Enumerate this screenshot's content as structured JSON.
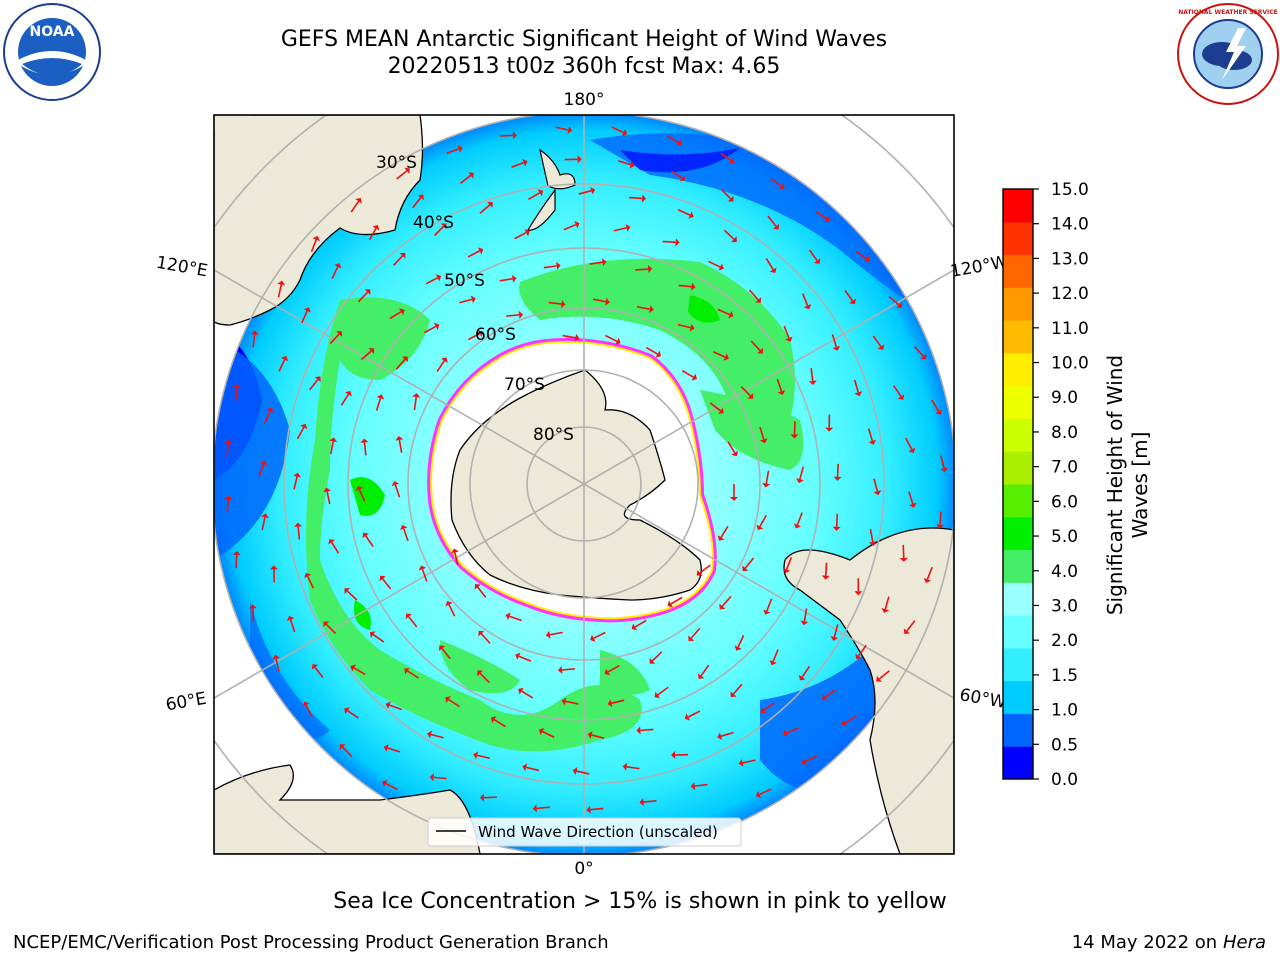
{
  "title": {
    "line1": "GEFS MEAN Antarctic Significant Height of Wind Waves",
    "line2": "20220513 t00z 360h fcst   Max: 4.65"
  },
  "logos": {
    "noaa_text": "NOAA",
    "nws_text": "NATIONAL WEATHER SERVICE"
  },
  "map": {
    "projection": "south-polar-stereographic",
    "lon_labels": {
      "top": "180°",
      "bottom": "0°",
      "upper_left": "120°E",
      "lower_left": "60°E",
      "upper_right": "120°W",
      "lower_right": "60°W"
    },
    "lat_labels": [
      "30°S",
      "40°S",
      "50°S",
      "60°S",
      "70°S",
      "80°S"
    ],
    "legend_label": "Wind Wave Direction (unscaled)",
    "arrow_color": "#ee1111",
    "land_color": "#ede9d8",
    "ice_edge_colors": [
      "#ff33ff",
      "#ffee00"
    ]
  },
  "colorbar": {
    "label": "Significant Height of Wind Waves [m]",
    "ticks": [
      "0.0",
      "0.5",
      "1.0",
      "1.5",
      "2.0",
      "3.0",
      "4.0",
      "5.0",
      "6.0",
      "7.0",
      "8.0",
      "9.0",
      "10.0",
      "11.0",
      "12.0",
      "13.0",
      "14.0",
      "15.0"
    ],
    "colors": [
      "#0000ff",
      "#0066ff",
      "#00ccff",
      "#33eeff",
      "#66ffff",
      "#99ffff",
      "#44ee66",
      "#00ee00",
      "#55ee00",
      "#aaee00",
      "#ccff00",
      "#eeff00",
      "#ffee00",
      "#ffbb00",
      "#ff9900",
      "#ff6600",
      "#ff3300",
      "#ff0000"
    ]
  },
  "note": "Sea Ice Concentration > 15% is shown in pink to yellow",
  "footer": {
    "left": "NCEP/EMC/Verification Post Processing Product Generation Branch",
    "right_date": "14 May 2022 on",
    "right_host": "Hera"
  }
}
